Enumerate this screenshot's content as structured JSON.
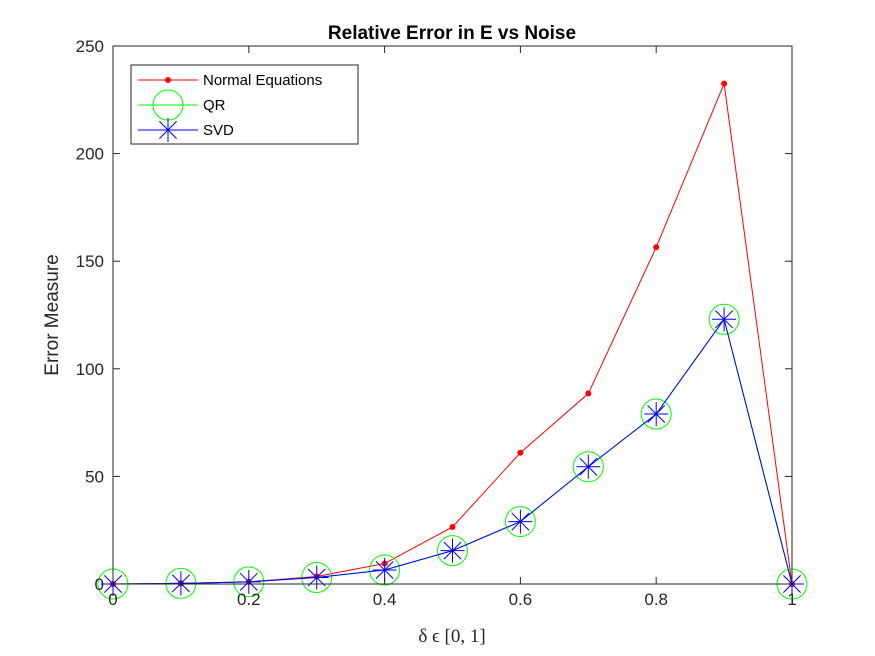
{
  "chart_data": {
    "type": "line",
    "title": "Relative Error in E vs Noise",
    "xlabel": "δ ϵ [0, 1]",
    "ylabel": "Error Measure",
    "xlim": [
      0,
      1
    ],
    "ylim": [
      0,
      250
    ],
    "xticks": [
      0,
      0.2,
      0.4,
      0.6,
      0.8,
      1
    ],
    "yticks": [
      0,
      50,
      100,
      150,
      200,
      250
    ],
    "xtick_labels": [
      "0",
      "0.2",
      "0.4",
      "0.6",
      "0.8",
      "1"
    ],
    "ytick_labels": [
      "0",
      "50",
      "100",
      "150",
      "200",
      "250"
    ],
    "grid": false,
    "legend_position": "top-left",
    "x": [
      0,
      0.1,
      0.2,
      0.3,
      0.4,
      0.5,
      0.6,
      0.7,
      0.8,
      0.9,
      1
    ],
    "series": [
      {
        "name": "Normal Equations",
        "color": "#ff0000",
        "marker": "dot",
        "values": [
          0,
          0.3,
          1.0,
          3.5,
          9.5,
          26.5,
          61,
          88.5,
          156.5,
          232.5,
          0
        ]
      },
      {
        "name": "QR",
        "color": "#00ff00",
        "marker": "circle",
        "values": [
          0,
          0.3,
          1.0,
          3.0,
          6.5,
          15.5,
          29,
          54.5,
          79,
          123,
          0
        ]
      },
      {
        "name": "SVD",
        "color": "#0000ff",
        "marker": "asterisk",
        "values": [
          0,
          0.3,
          1.0,
          3.0,
          6.5,
          15.5,
          29,
          54.5,
          79,
          123,
          0
        ]
      }
    ]
  }
}
